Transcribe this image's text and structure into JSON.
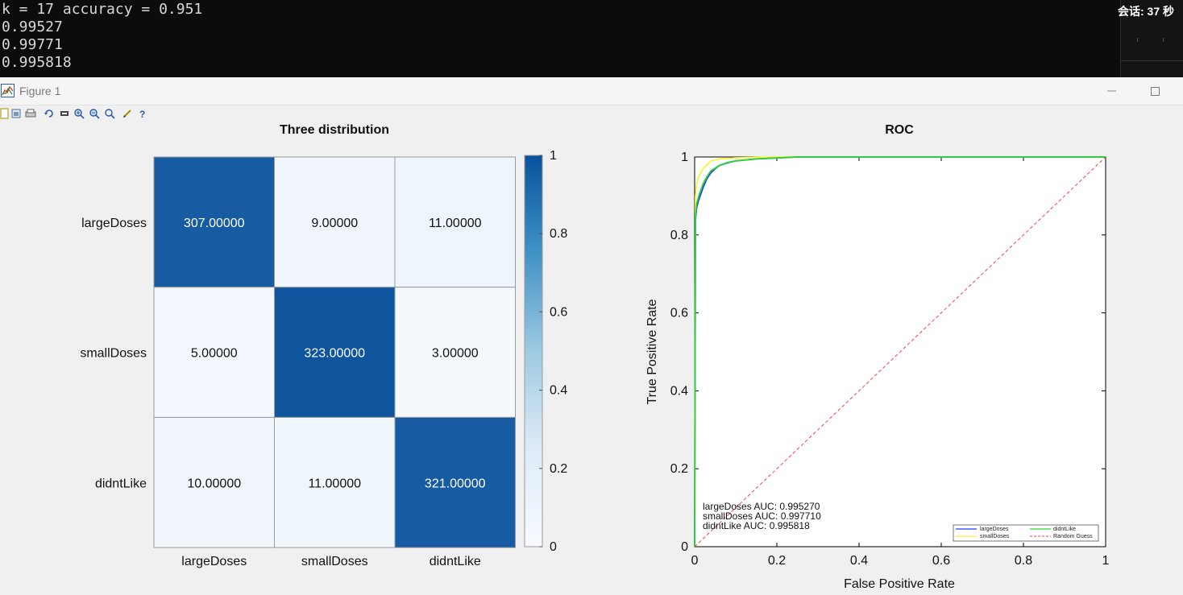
{
  "console": {
    "lines": [
      "k = 17 accuracy = 0.951",
      "0.99527",
      "0.99771",
      "0.995818"
    ],
    "session_label": "会话: 37 秒"
  },
  "figure": {
    "title": "Figure 1",
    "toolbar": [
      "new-figure",
      "open",
      "print",
      "rotate",
      "data-cursor",
      "zoom-in",
      "zoom-out",
      "pan",
      "edit",
      "help"
    ]
  },
  "colors": {
    "heat_dark": "#08519c",
    "heat_light": "#f7fbff",
    "largeDoses": "#1f3ff5",
    "smallDoses": "#f5f542",
    "didntLike": "#2dd52d",
    "random_guess": "#ff4040"
  },
  "chart_data": [
    {
      "type": "heatmap",
      "title": "Three distribution",
      "rows": [
        "largeDoses",
        "smallDoses",
        "didntLike"
      ],
      "columns": [
        "largeDoses",
        "smallDoses",
        "didntLike"
      ],
      "values": [
        [
          307,
          9,
          11
        ],
        [
          5,
          323,
          3
        ],
        [
          10,
          11,
          321
        ]
      ],
      "cell_labels": [
        [
          "307.00000",
          "9.00000",
          "11.00000"
        ],
        [
          "5.00000",
          "323.00000",
          "3.00000"
        ],
        [
          "10.00000",
          "11.00000",
          "321.00000"
        ]
      ],
      "colorbar": {
        "min": 0,
        "max": 1,
        "ticks": [
          "0",
          "0.2",
          "0.4",
          "0.6",
          "0.8",
          "1"
        ]
      }
    },
    {
      "type": "line",
      "title": "ROC",
      "xlabel": "False Positive Rate",
      "ylabel": "True Positive Rate",
      "xlim": [
        0,
        1
      ],
      "ylim": [
        0,
        1
      ],
      "xticks": [
        "0",
        "0.2",
        "0.4",
        "0.6",
        "0.8",
        "1"
      ],
      "yticks": [
        "0",
        "0.2",
        "0.4",
        "0.6",
        "0.8",
        "1"
      ],
      "series": [
        {
          "name": "largeDoses",
          "x": [
            0,
            0.002,
            0.005,
            0.01,
            0.02,
            0.03,
            0.04,
            0.05,
            0.06,
            0.08,
            0.1,
            0.15,
            0.25,
            1
          ],
          "y": [
            0,
            0.84,
            0.87,
            0.89,
            0.92,
            0.945,
            0.96,
            0.97,
            0.978,
            0.985,
            0.99,
            0.995,
            1,
            1
          ]
        },
        {
          "name": "smallDoses",
          "x": [
            0,
            0.002,
            0.005,
            0.01,
            0.015,
            0.02,
            0.03,
            0.04,
            0.06,
            0.1,
            0.2,
            1
          ],
          "y": [
            0,
            0.9,
            0.93,
            0.95,
            0.96,
            0.97,
            0.98,
            0.99,
            0.995,
            0.998,
            1,
            1
          ]
        },
        {
          "name": "didntLike",
          "x": [
            0,
            0.002,
            0.005,
            0.01,
            0.02,
            0.03,
            0.04,
            0.06,
            0.08,
            0.1,
            0.15,
            0.25,
            1
          ],
          "y": [
            0,
            0.85,
            0.88,
            0.9,
            0.93,
            0.95,
            0.965,
            0.978,
            0.986,
            0.99,
            0.995,
            1,
            1
          ]
        },
        {
          "name": "Random Guess",
          "x": [
            0,
            1
          ],
          "y": [
            0,
            1
          ]
        }
      ],
      "annotations": [
        "largeDoses AUC: 0.995270",
        "smallDoses AUC: 0.997710",
        "didntLike AUC: 0.995818"
      ],
      "legend_position": "bottom-right"
    }
  ]
}
